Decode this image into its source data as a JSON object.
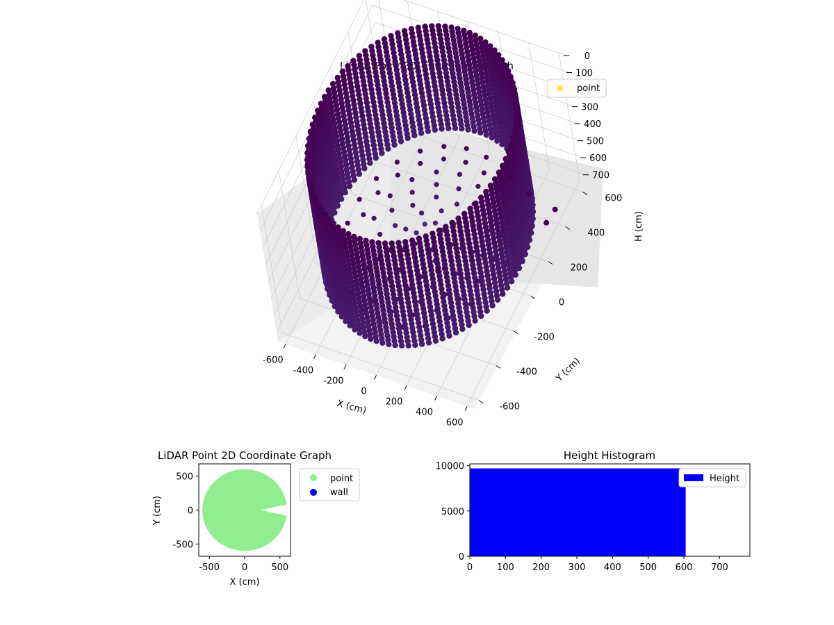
{
  "chart_data": [
    {
      "type": "scatter3d",
      "title": "LiDAR Point 3D Coordinate Graph",
      "xlabel": "X (cm)",
      "ylabel": "Y (cm)",
      "zlabel": "H (cm)",
      "x_ticks": [
        -600,
        -400,
        -200,
        0,
        200,
        400,
        600
      ],
      "y_ticks": [
        -600,
        -400,
        -200,
        0,
        200,
        400,
        600
      ],
      "z_ticks": [
        0,
        100,
        200,
        300,
        400,
        500,
        600,
        700
      ],
      "xlim": [
        -650,
        650
      ],
      "ylim": [
        -650,
        650
      ],
      "zlim": [
        0,
        750
      ],
      "z_inverted": true,
      "legend": {
        "position": "top-right",
        "entries": [
          {
            "name": "point",
            "color": "#fde725"
          }
        ]
      },
      "color_dark": "#440154",
      "color_mid": "#482878",
      "wall": {
        "shape": "circle",
        "radius": 600,
        "height_min": 0,
        "height_max": 600
      },
      "floor": {
        "z": 600
      },
      "outliers": [
        {
          "x": 150,
          "y": 640,
          "z": 700
        },
        {
          "x": 350,
          "y": 500,
          "z": 750
        },
        {
          "x": 60,
          "y": -40,
          "z": 740
        },
        {
          "x": 220,
          "y": 520,
          "z": 710
        },
        {
          "x": 600,
          "y": 300,
          "z": 640
        },
        {
          "x": 580,
          "y": 420,
          "z": 690
        }
      ],
      "grid": true
    },
    {
      "type": "scatter",
      "title": "LiDAR Point 2D Coordinate Graph",
      "xlabel": "X (cm)",
      "ylabel": "Y (cm)",
      "x_ticks": [
        -500,
        0,
        500
      ],
      "y_ticks": [
        500,
        0,
        -500
      ],
      "xlim": [
        -650,
        650
      ],
      "ylim": [
        -680,
        680
      ],
      "legend": {
        "position": "outside-right",
        "entries": [
          {
            "name": "point",
            "color": "#90ee90"
          },
          {
            "name": "wall",
            "color": "#0000ff"
          }
        ]
      }
    },
    {
      "type": "bar",
      "title": "Height Histogram",
      "x_ticks": [
        0,
        100,
        200,
        300,
        400,
        500,
        600,
        700
      ],
      "y_ticks": [
        0,
        5000,
        10000
      ],
      "xlim": [
        0,
        785
      ],
      "ylim": [
        0,
        10200
      ],
      "bins": [
        {
          "x0": 0,
          "x1": 605,
          "count": 9700
        }
      ],
      "color": "#0000ff",
      "legend": {
        "position": "top-right",
        "entries": [
          {
            "name": "Height",
            "color": "#0000ff"
          }
        ]
      }
    }
  ]
}
